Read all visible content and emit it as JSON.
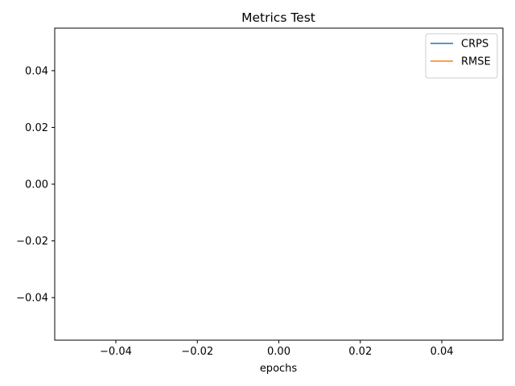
{
  "chart_data": {
    "type": "line",
    "title": "Metrics Test",
    "xlabel": "epochs",
    "ylabel": "",
    "xlim": [
      -0.055,
      0.055
    ],
    "ylim": [
      -0.055,
      0.055
    ],
    "x_ticks": [
      -0.04,
      -0.02,
      0.0,
      0.02,
      0.04
    ],
    "x_tick_labels": [
      "−0.04",
      "−0.02",
      "0.00",
      "0.02",
      "0.04"
    ],
    "y_ticks": [
      -0.04,
      -0.02,
      0.0,
      0.02,
      0.04
    ],
    "y_tick_labels": [
      "−0.04",
      "−0.02",
      "0.00",
      "0.02",
      "0.04"
    ],
    "grid": false,
    "legend_position": "top-right",
    "series": [
      {
        "name": "CRPS",
        "color": "#1f77b4",
        "x": [],
        "y": []
      },
      {
        "name": "RMSE",
        "color": "#ff7f0e",
        "x": [],
        "y": []
      }
    ]
  }
}
